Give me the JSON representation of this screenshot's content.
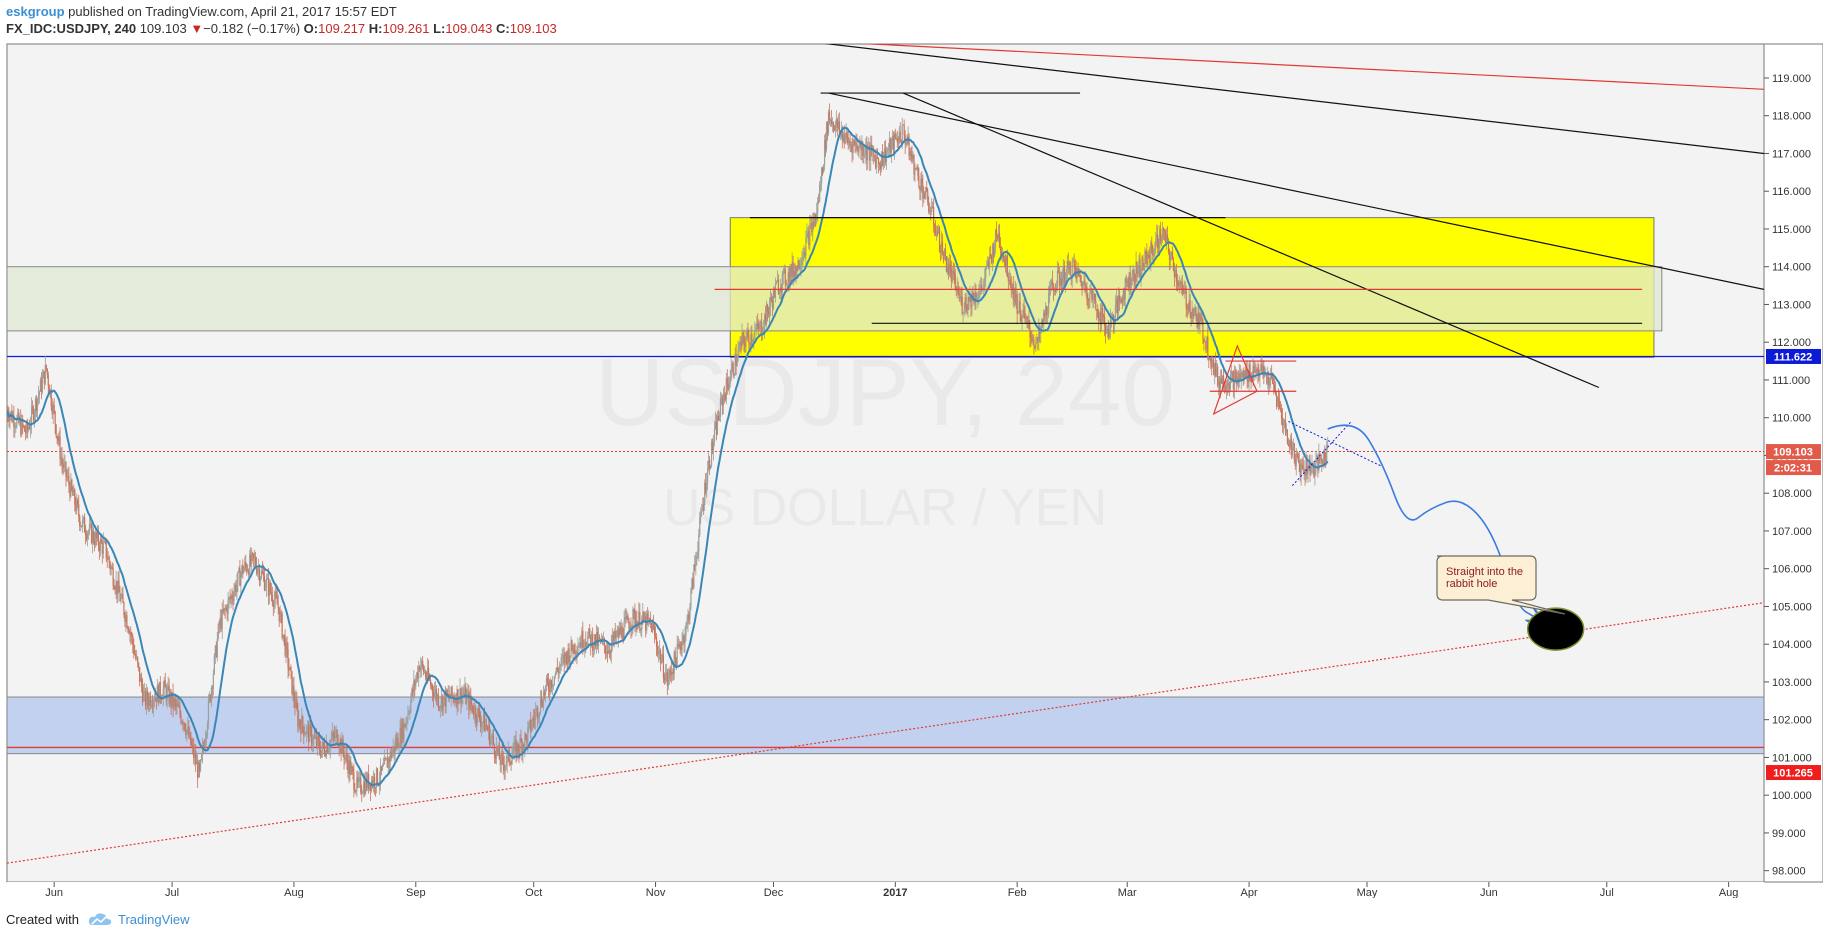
{
  "header": {
    "author": "eskgroup",
    "published": "published on TradingView.com, April 21, 2017 15:57 EDT",
    "symbol": "FX_IDC:USDJPY, 240",
    "last": "109.103",
    "change_arrow": "▼",
    "change": "−0.182 (−0.17%)",
    "o_label": "O:",
    "o": "109.217",
    "h_label": "H:",
    "h": "109.261",
    "l_label": "L:",
    "l": "109.043",
    "c_label": "C:",
    "c": "109.103"
  },
  "footer": {
    "created_with": "Created with",
    "brand": "TradingView",
    "brand_icon": "tradingview-cloud-icon"
  },
  "watermark": {
    "symbol": "USDJPY, 240",
    "name": "US DOLLAR / YEN"
  },
  "annotation": {
    "text_line1": "Straight into the",
    "text_line2": "rabbit hole"
  },
  "price_badges": {
    "blue_line": "111.622",
    "current": "109.103",
    "countdown": "2:02:31",
    "red_level": "101.265"
  },
  "colors": {
    "up": "#9aa09b",
    "down": "#c9735a",
    "ma": "#3a86b7",
    "yellow_zone": "#ffff00",
    "green_zone": "#dfe8d3",
    "blue_zone": "#c1d1ef",
    "accent_blue": "#0d1bd6",
    "red": "#e53935",
    "projection": "#3c7ce0"
  },
  "chart_data": {
    "type": "line",
    "symbol": "FX_IDC:USDJPY",
    "interval": "240",
    "x_ticks": [
      "Jun",
      "Jul",
      "Aug",
      "Sep",
      "Oct",
      "Nov",
      "Dec",
      "2017",
      "Feb",
      "Mar",
      "Apr",
      "May",
      "Jun",
      "Jul",
      "Aug"
    ],
    "y_ticks": [
      "98.000",
      "99.000",
      "100.000",
      "101.000",
      "102.000",
      "103.000",
      "104.000",
      "105.000",
      "106.000",
      "107.000",
      "108.000",
      "109.000",
      "110.000",
      "111.000",
      "112.000",
      "113.000",
      "114.000",
      "115.000",
      "116.000",
      "117.000",
      "118.000",
      "119.000"
    ],
    "ylim": [
      97.7,
      119.9
    ],
    "xlim": [
      "2016-05-20",
      "2017-08-10"
    ],
    "grid": false,
    "series": [
      {
        "values": [
          [
            "2016-05-20",
            110.2
          ],
          [
            "2016-05-25",
            109.6
          ],
          [
            "2016-05-30",
            111.3
          ],
          [
            "2016-06-03",
            108.8
          ],
          [
            "2016-06-08",
            107.2
          ],
          [
            "2016-06-14",
            106.5
          ],
          [
            "2016-06-20",
            104.5
          ],
          [
            "2016-06-24",
            102.5
          ],
          [
            "2016-06-29",
            102.8
          ],
          [
            "2016-07-04",
            102.0
          ],
          [
            "2016-07-08",
            100.5
          ],
          [
            "2016-07-13",
            104.5
          ],
          [
            "2016-07-19",
            106.0
          ],
          [
            "2016-07-22",
            106.2
          ],
          [
            "2016-07-28",
            105.0
          ],
          [
            "2016-08-02",
            102.0
          ],
          [
            "2016-08-08",
            101.2
          ],
          [
            "2016-08-12",
            101.6
          ],
          [
            "2016-08-17",
            100.2
          ],
          [
            "2016-08-23",
            100.5
          ],
          [
            "2016-08-29",
            101.8
          ],
          [
            "2016-09-02",
            103.5
          ],
          [
            "2016-09-07",
            102.5
          ],
          [
            "2016-09-13",
            102.7
          ],
          [
            "2016-09-19",
            101.8
          ],
          [
            "2016-09-23",
            100.8
          ],
          [
            "2016-09-29",
            101.5
          ],
          [
            "2016-10-04",
            102.8
          ],
          [
            "2016-10-10",
            103.8
          ],
          [
            "2016-10-14",
            104.2
          ],
          [
            "2016-10-20",
            103.9
          ],
          [
            "2016-10-26",
            104.7
          ],
          [
            "2016-10-31",
            104.5
          ],
          [
            "2016-11-04",
            103.0
          ],
          [
            "2016-11-09",
            104.5
          ],
          [
            "2016-11-14",
            108.5
          ],
          [
            "2016-11-18",
            110.5
          ],
          [
            "2016-11-23",
            112.0
          ],
          [
            "2016-11-28",
            112.4
          ],
          [
            "2016-12-02",
            113.5
          ],
          [
            "2016-12-07",
            114.0
          ],
          [
            "2016-12-12",
            115.4
          ],
          [
            "2016-12-15",
            118.0
          ],
          [
            "2016-12-20",
            117.3
          ],
          [
            "2016-12-23",
            117.2
          ],
          [
            "2016-12-28",
            116.8
          ],
          [
            "2017-01-03",
            117.6
          ],
          [
            "2017-01-06",
            116.6
          ],
          [
            "2017-01-10",
            115.5
          ],
          [
            "2017-01-13",
            114.4
          ],
          [
            "2017-01-18",
            113.0
          ],
          [
            "2017-01-23",
            113.4
          ],
          [
            "2017-01-27",
            114.9
          ],
          [
            "2017-02-01",
            113.0
          ],
          [
            "2017-02-06",
            111.9
          ],
          [
            "2017-02-10",
            113.5
          ],
          [
            "2017-02-15",
            114.0
          ],
          [
            "2017-02-20",
            113.2
          ],
          [
            "2017-02-24",
            112.3
          ],
          [
            "2017-03-01",
            113.6
          ],
          [
            "2017-03-06",
            114.2
          ],
          [
            "2017-03-10",
            114.9
          ],
          [
            "2017-03-15",
            113.3
          ],
          [
            "2017-03-20",
            112.4
          ],
          [
            "2017-03-24",
            111.0
          ],
          [
            "2017-03-29",
            111.0
          ],
          [
            "2017-04-03",
            111.3
          ],
          [
            "2017-04-07",
            110.9
          ],
          [
            "2017-04-11",
            109.4
          ],
          [
            "2017-04-14",
            108.7
          ],
          [
            "2017-04-18",
            108.7
          ],
          [
            "2017-04-21",
            109.1
          ]
        ]
      }
    ],
    "horizontal_levels": [
      {
        "y": 111.622,
        "style": "solid",
        "color": "#0d1bd6"
      },
      {
        "y": 109.103,
        "style": "dotted",
        "color": "#e53935"
      },
      {
        "y": 101.265,
        "style": "solid",
        "color": "#e53935"
      }
    ],
    "zones": [
      {
        "type": "yellow",
        "x": [
          "2016-11-20",
          "2017-07-13"
        ],
        "y": [
          111.6,
          115.3
        ]
      },
      {
        "type": "green",
        "x": [
          "2016-05-20",
          "2017-07-15"
        ],
        "y": [
          112.3,
          114.0
        ]
      },
      {
        "type": "blue",
        "x": [
          "2016-05-20",
          "2017-08-10"
        ],
        "y": [
          101.1,
          102.6
        ]
      }
    ],
    "trendlines": [
      {
        "from": [
          "2016-12-07",
          120.0
        ],
        "to": [
          "2017-08-10",
          117.0
        ],
        "color": "#111111"
      },
      {
        "from": [
          "2016-12-15",
          118.6
        ],
        "to": [
          "2017-08-10",
          113.4
        ],
        "color": "#111111"
      },
      {
        "from": [
          "2017-01-03",
          118.6
        ],
        "to": [
          "2017-06-29",
          110.8
        ],
        "color": "#111111"
      },
      {
        "from": [
          "2016-12-07",
          120.0
        ],
        "to": [
          "2017-08-10",
          118.7
        ],
        "color": "#e53935"
      },
      {
        "from": [
          "2016-12-13",
          118.6
        ],
        "to": [
          "2017-02-17",
          118.6
        ],
        "color": "#111111"
      },
      {
        "from": [
          "2016-11-25",
          115.3
        ],
        "to": [
          "2017-03-26",
          115.3
        ],
        "color": "#111111"
      },
      {
        "from": [
          "2016-12-26",
          112.5
        ],
        "to": [
          "2017-07-10",
          112.5
        ],
        "color": "#111111"
      },
      {
        "from": [
          "2016-11-16",
          113.4
        ],
        "to": [
          "2017-07-10",
          113.4
        ],
        "color": "#e53935"
      },
      {
        "from": [
          "2016-05-20",
          98.2
        ],
        "to": [
          "2017-08-10",
          105.1
        ],
        "color": "#e53935",
        "style": "dotted"
      }
    ],
    "projection": [
      [
        "2017-04-21",
        109.7
      ],
      [
        "2017-04-28",
        110.0
      ],
      [
        "2017-05-05",
        108.8
      ],
      [
        "2017-05-11",
        107.1
      ],
      [
        "2017-05-17",
        107.6
      ],
      [
        "2017-05-25",
        107.9
      ],
      [
        "2017-06-02",
        107.0
      ],
      [
        "2017-06-08",
        105.0
      ],
      [
        "2017-06-13",
        104.7
      ]
    ],
    "target_marker": {
      "x": "2017-06-18",
      "y": 104.4
    }
  }
}
